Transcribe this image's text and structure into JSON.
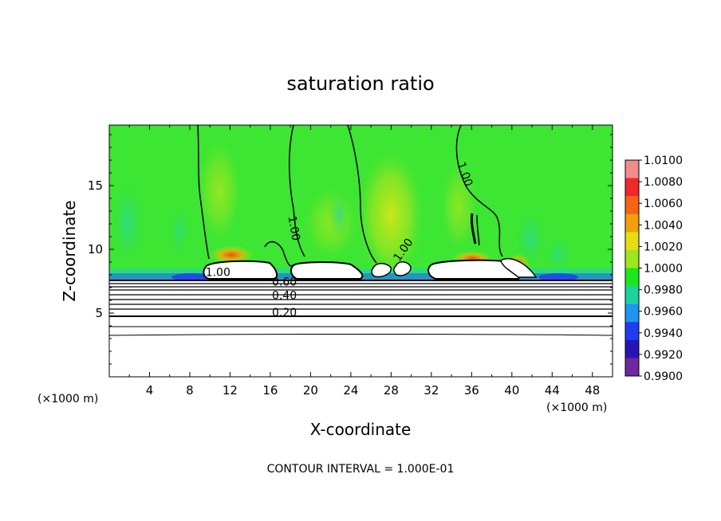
{
  "chart_data": {
    "type": "heatmap",
    "title": "saturation ratio",
    "xlabel": "X-coordinate",
    "ylabel": "Z-coordinate",
    "x_unit": "(×1000 m)",
    "y_unit": "(×1000 m)",
    "xlim": [
      0,
      50
    ],
    "ylim": [
      0,
      19.75
    ],
    "x_ticks": [
      4,
      8,
      12,
      16,
      20,
      24,
      28,
      32,
      36,
      40,
      44,
      48
    ],
    "y_ticks": [
      5,
      10,
      15
    ],
    "contour_interval_text": "CONTOUR INTERVAL = 1.000E-01",
    "contour_labels": [
      {
        "text": "1.00",
        "x": 10.8,
        "y": 7.9
      },
      {
        "text": "0.60",
        "x": 17.4,
        "y": 7.15
      },
      {
        "text": "0.40",
        "x": 17.4,
        "y": 6.1
      },
      {
        "text": "0.20",
        "x": 17.4,
        "y": 4.75
      },
      {
        "text": "1.00",
        "x": 18.0,
        "y": 11.6
      },
      {
        "text": "1.00",
        "x": 29.5,
        "y": 9.8
      },
      {
        "text": "1.00",
        "x": 35.0,
        "y": 15.8
      }
    ],
    "colorbar": {
      "labels": [
        "1.0100",
        "1.0080",
        "1.0060",
        "1.0040",
        "1.0020",
        "1.0000",
        "0.9980",
        "0.9960",
        "0.9940",
        "0.9920",
        "0.9900"
      ],
      "colors": [
        "#f08c8c",
        "#f02828",
        "#f56414",
        "#f0a00a",
        "#e6dc14",
        "#a0e61e",
        "#1ee61e",
        "#1ed2a0",
        "#1e96f0",
        "#1e3cf0",
        "#2814b4",
        "#6e28a0"
      ]
    },
    "background_color": "#3ce632",
    "lower_region_color": "#ffffff"
  }
}
